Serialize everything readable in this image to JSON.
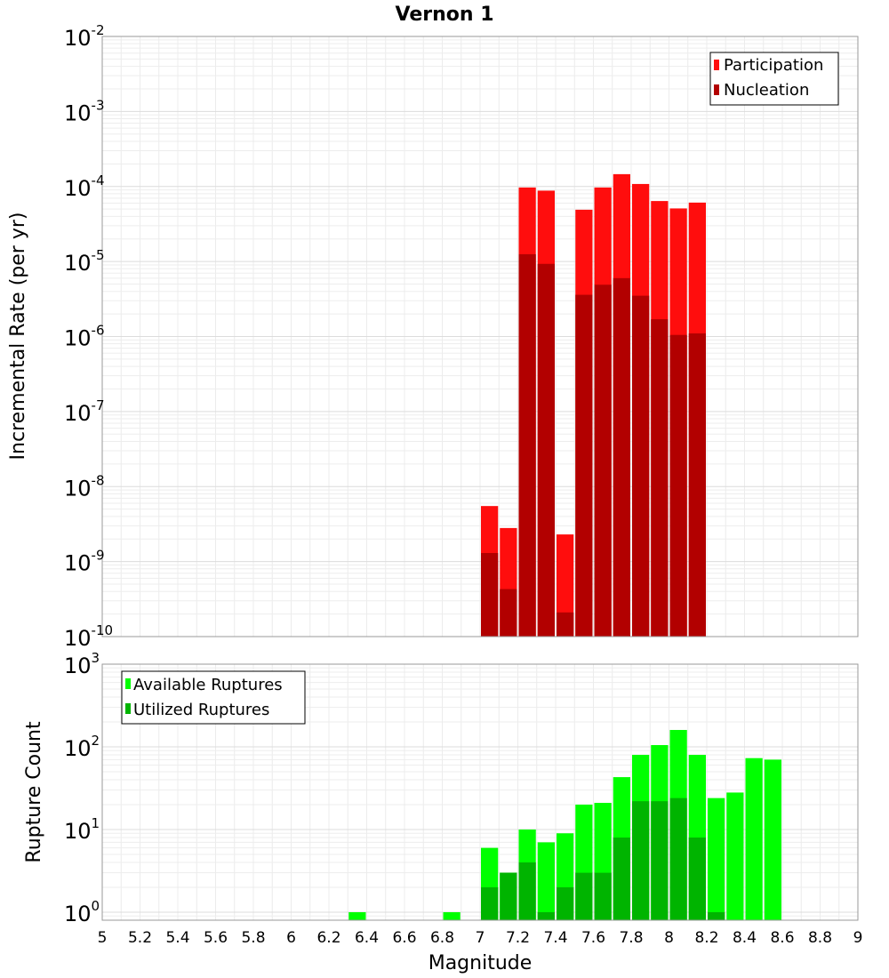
{
  "chart_data": [
    {
      "type": "bar",
      "title": "Vernon 1",
      "ylabel": "Incremental Rate (per yr)",
      "yscale": "log",
      "ylim": [
        1e-10,
        0.01
      ],
      "xlim": [
        5,
        9
      ],
      "bar_width": 0.1,
      "grid": true,
      "legend_position": "top-right",
      "yticks": [
        {
          "base": "10",
          "exp": "-2",
          "value": 0.01
        },
        {
          "base": "10",
          "exp": "-3",
          "value": 0.001
        },
        {
          "base": "10",
          "exp": "-4",
          "value": 0.0001
        },
        {
          "base": "10",
          "exp": "-5",
          "value": 1e-05
        },
        {
          "base": "10",
          "exp": "-6",
          "value": 1e-06
        },
        {
          "base": "10",
          "exp": "-7",
          "value": 1e-07
        },
        {
          "base": "10",
          "exp": "-8",
          "value": 1e-08
        },
        {
          "base": "10",
          "exp": "-9",
          "value": 1e-09
        },
        {
          "base": "10",
          "exp": "-10",
          "value": 1e-10
        }
      ],
      "x": [
        7.05,
        7.15,
        7.25,
        7.35,
        7.45,
        7.55,
        7.65,
        7.75,
        7.85,
        7.95,
        8.05,
        8.15
      ],
      "series": [
        {
          "name": "Participation",
          "color": "#ff0d0d",
          "values": [
            5.5e-09,
            2.8e-09,
            9.7e-05,
            8.8e-05,
            2.3e-09,
            4.9e-05,
            9.7e-05,
            0.000146,
            0.000108,
            6.4e-05,
            5.1e-05,
            6.1e-05
          ]
        },
        {
          "name": "Nucleation",
          "color": "#b20000",
          "values": [
            1.3e-09,
            4.3e-10,
            1.25e-05,
            9.3e-06,
            2.1e-10,
            3.6e-06,
            4.9e-06,
            6e-06,
            3.5e-06,
            1.7e-06,
            1.05e-06,
            1.1e-06
          ]
        }
      ]
    },
    {
      "type": "bar",
      "ylabel": "Rupture Count",
      "xlabel": "Magnitude",
      "yscale": "log",
      "ylim": [
        0.8,
        1000
      ],
      "xlim": [
        5,
        9
      ],
      "bar_width": 0.1,
      "grid": true,
      "legend_position": "top-left",
      "yticks": [
        {
          "base": "10",
          "exp": "3",
          "value": 1000
        },
        {
          "base": "10",
          "exp": "2",
          "value": 100
        },
        {
          "base": "10",
          "exp": "1",
          "value": 10
        },
        {
          "base": "10",
          "exp": "0",
          "value": 1
        }
      ],
      "xticks": [
        "5",
        "5.2",
        "5.4",
        "5.6",
        "5.8",
        "6",
        "6.2",
        "6.4",
        "6.6",
        "6.8",
        "7",
        "7.2",
        "7.4",
        "7.6",
        "7.8",
        "8",
        "8.2",
        "8.4",
        "8.6",
        "8.8",
        "9"
      ],
      "x": [
        6.35,
        6.85,
        7.05,
        7.15,
        7.25,
        7.35,
        7.45,
        7.55,
        7.65,
        7.75,
        7.85,
        7.95,
        8.05,
        8.15,
        8.25,
        8.35,
        8.45,
        8.55
      ],
      "series": [
        {
          "name": "Available Ruptures",
          "color": "#00ff00",
          "values": [
            1,
            1,
            6,
            3,
            10,
            7,
            9,
            20,
            21,
            43,
            80,
            105,
            160,
            80,
            24,
            28,
            73,
            70
          ]
        },
        {
          "name": "Utilized Ruptures",
          "color": "#00b400",
          "values": [
            0,
            0,
            2,
            3,
            4,
            1,
            2,
            3,
            3,
            8,
            22,
            22,
            24,
            8,
            1,
            0,
            0,
            0
          ]
        }
      ]
    }
  ]
}
